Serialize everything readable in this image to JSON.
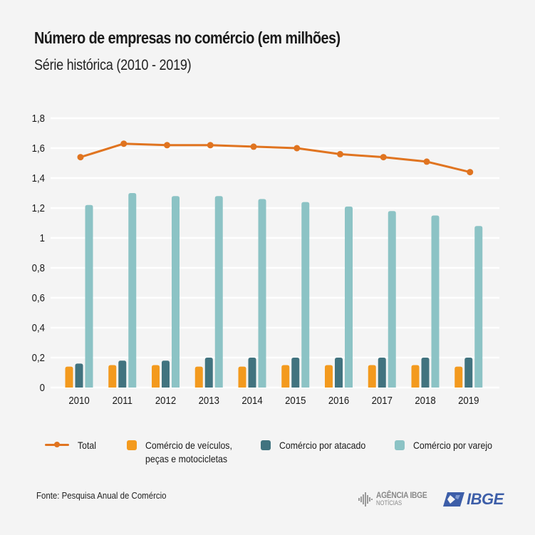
{
  "header": {
    "title": "Número de empresas no comércio (em milhões)",
    "subtitle": "Série histórica (2010 - 2019)"
  },
  "chart_data": {
    "type": "bar",
    "title": "Número de empresas no comércio (em milhões)",
    "subtitle": "Série histórica (2010 - 2019)",
    "xlabel": "",
    "ylabel": "",
    "ylim": [
      0,
      1.8
    ],
    "yticks": [
      0,
      0.2,
      0.4,
      0.6,
      0.8,
      1,
      1.2,
      1.4,
      1.6,
      1.8
    ],
    "ytick_labels": [
      "0",
      "0,2",
      "0,4",
      "0,6",
      "0,8",
      "1",
      "1,2",
      "1,4",
      "1,6",
      "1,8"
    ],
    "grid": true,
    "legend_position": "bottom",
    "categories": [
      "2010",
      "2011",
      "2012",
      "2013",
      "2014",
      "2015",
      "2016",
      "2017",
      "2018",
      "2019"
    ],
    "series": [
      {
        "name": "Total",
        "type": "line",
        "color": "#e07420",
        "values": [
          1.54,
          1.63,
          1.62,
          1.62,
          1.61,
          1.6,
          1.56,
          1.54,
          1.51,
          1.44
        ]
      },
      {
        "name": "Comércio de veículos, peças e motocicletas",
        "type": "bar",
        "color": "#f39a1e",
        "values": [
          0.14,
          0.15,
          0.15,
          0.14,
          0.14,
          0.15,
          0.15,
          0.15,
          0.15,
          0.14
        ]
      },
      {
        "name": "Comércio por atacado",
        "type": "bar",
        "color": "#41737f",
        "values": [
          0.16,
          0.18,
          0.18,
          0.2,
          0.2,
          0.2,
          0.2,
          0.2,
          0.2,
          0.2
        ]
      },
      {
        "name": "Comércio por varejo",
        "type": "bar",
        "color": "#8cc3c5",
        "values": [
          1.22,
          1.3,
          1.28,
          1.28,
          1.26,
          1.24,
          1.21,
          1.18,
          1.15,
          1.08
        ]
      }
    ]
  },
  "legend": {
    "items": [
      {
        "label": "Total",
        "color": "#e07420"
      },
      {
        "label_line1": "Comércio de veículos,",
        "label_line2": "peças e motocicletas",
        "color": "#f39a1e"
      },
      {
        "label": "Comércio por atacado",
        "color": "#41737f"
      },
      {
        "label": "Comércio por varejo",
        "color": "#8cc3c5"
      }
    ]
  },
  "footer": {
    "source": "Fonte: Pesquisa Anual de Comércio",
    "logo_agencia_top": "AGÊNCIA IBGE",
    "logo_agencia_bottom": "NOTÍCIAS",
    "logo_ibge": "IBGE"
  }
}
